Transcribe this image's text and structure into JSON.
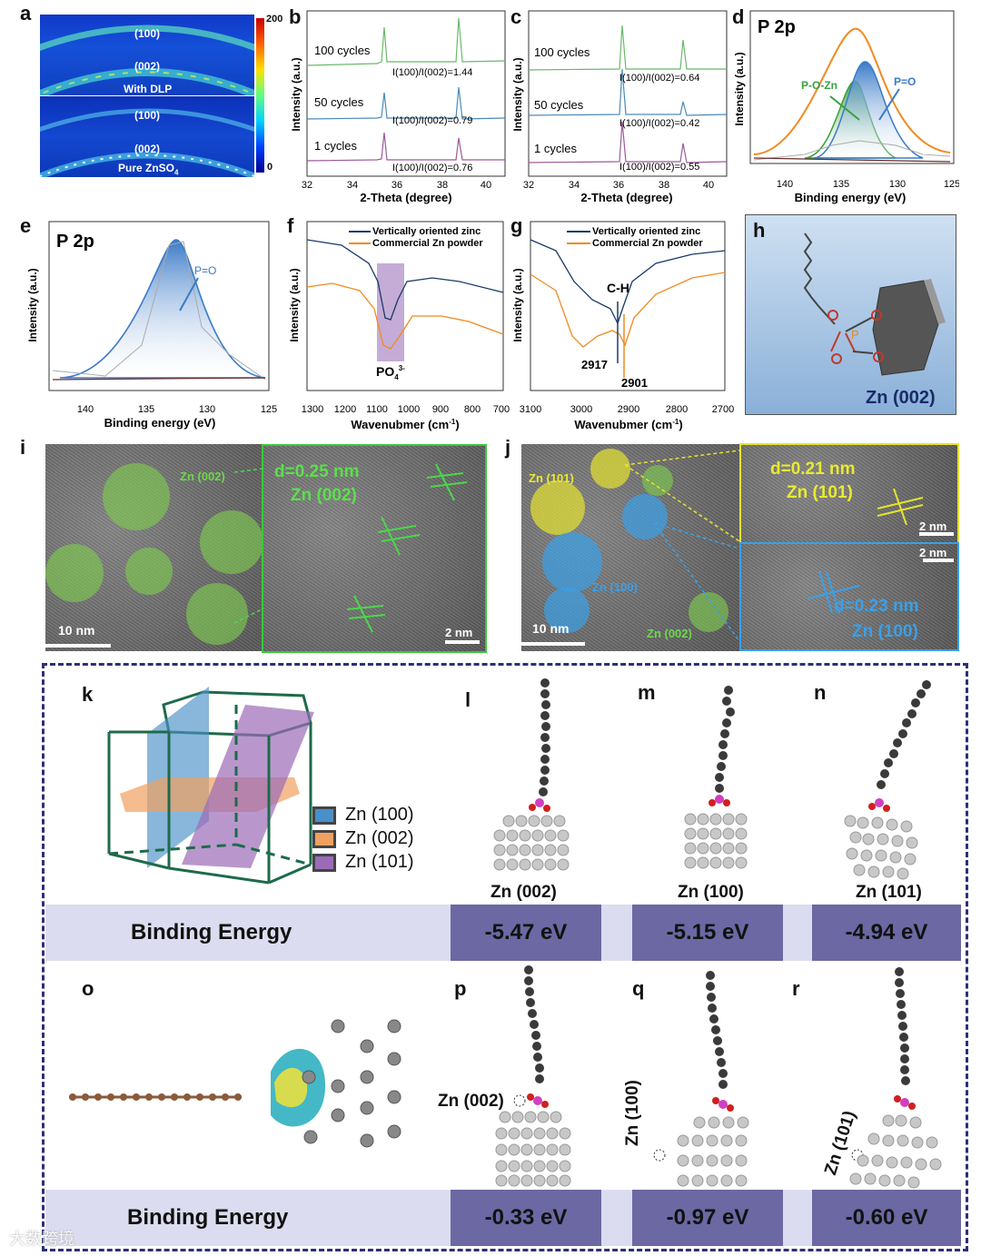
{
  "panels": {
    "a": {
      "label": "a",
      "top_text_1": "(100)",
      "top_text_2": "(002)",
      "top_caption": "With DLP",
      "bot_text_1": "(100)",
      "bot_text_2": "(002)",
      "bot_caption": "Pure ZnSO",
      "bot_caption_sub": "4",
      "colorbar_max": "200",
      "colorbar_min": "0"
    },
    "b": {
      "label": "b",
      "rows": [
        {
          "name": "100 cycles",
          "ratio": "I(100)/I(002)=1.44"
        },
        {
          "name": "50 cycles",
          "ratio": "I(100)/I(002)=0.79"
        },
        {
          "name": "1 cycles",
          "ratio": "I(100)/I(002)=0.76"
        }
      ],
      "xlabel": "2-Theta (degree)",
      "ylabel": "Intensity (a.u.)",
      "ticks": [
        "32",
        "34",
        "36",
        "38",
        "40"
      ]
    },
    "c": {
      "label": "c",
      "rows": [
        {
          "name": "100 cycles",
          "ratio": "I(100)/I(002)=0.64"
        },
        {
          "name": "50 cycles",
          "ratio": "I(100)/I(002)=0.42"
        },
        {
          "name": "1 cycles",
          "ratio": "I(100)/I(002)=0.55"
        }
      ],
      "xlabel": "2-Theta (degree)",
      "ylabel": "Intensity (a.u.)",
      "ticks": [
        "32",
        "34",
        "36",
        "38",
        "40"
      ]
    },
    "d": {
      "label": "d",
      "title": "P 2p",
      "peak1": "P-O-Zn",
      "peak2": "P=O",
      "xlabel": "Binding energy (eV)",
      "ylabel": "Intensity (a.u.)",
      "ticks": [
        "140",
        "135",
        "130",
        "125"
      ]
    },
    "e": {
      "label": "e",
      "title": "P 2p",
      "peak1": "P=O",
      "xlabel": "Binding energy (eV)",
      "ylabel": "Intensity (a.u.)",
      "ticks": [
        "140",
        "135",
        "130",
        "125"
      ]
    },
    "f": {
      "label": "f",
      "legend1": "Vertically oriented zinc",
      "legend2": "Commercial Zn powder",
      "band_label": "PO",
      "band_sup": "3-",
      "band_sub": "4",
      "xlabel": "Wavenubmer (cm",
      "xlabel_sup": "-1",
      "xlabel_end": ")",
      "ylabel": "Intensity (a.u.)",
      "ticks": [
        "1300",
        "1200",
        "1100",
        "1000",
        "900",
        "800",
        "700"
      ]
    },
    "g": {
      "label": "g",
      "legend1": "Vertically oriented zinc",
      "legend2": "Commercial Zn powder",
      "ch_label": "C-H",
      "peak1": "2917",
      "peak2": "2901",
      "xlabel": "Wavenubmer (cm",
      "xlabel_sup": "-1",
      "xlabel_end": ")",
      "ylabel": "Intensity (a.u.)",
      "ticks": [
        "3100",
        "3000",
        "2900",
        "2800",
        "2700"
      ]
    },
    "h": {
      "label": "h",
      "atom_p": "P",
      "atom_o": "O",
      "caption": "Zn (002)"
    },
    "i": {
      "label": "i",
      "circle_label": "Zn (002)",
      "d_text": "d=0.25 nm",
      "zn_text": "Zn (002)",
      "scale_left": "10 nm",
      "scale_right": "2 nm"
    },
    "j": {
      "label": "j",
      "zn101": "Zn (101)",
      "zn100": "Zn (100)",
      "zn002": "Zn (002)",
      "scale_left": "10 nm",
      "top_d": "d=0.21 nm",
      "top_zn": "Zn (101)",
      "top_scale": "2 nm",
      "bot_scale": "2 nm",
      "bot_d": "d=0.23 nm",
      "bot_zn": "Zn (100)"
    },
    "k": {
      "label": "k",
      "legend": [
        {
          "text": "Zn (100)",
          "color": "#4a90c8"
        },
        {
          "text": "Zn (002)",
          "color": "#f0a060"
        },
        {
          "text": "Zn (101)",
          "color": "#9b6bb8"
        }
      ]
    },
    "l": {
      "label": "l",
      "caption": "Zn (002)",
      "energy": "-5.47 eV"
    },
    "m": {
      "label": "m",
      "caption": "Zn (100)",
      "energy": "-5.15 eV"
    },
    "n": {
      "label": "n",
      "caption": "Zn (101)",
      "energy": "-4.94 eV"
    },
    "o": {
      "label": "o"
    },
    "p": {
      "label": "p",
      "caption": "Zn (002)",
      "energy": "-0.33 eV"
    },
    "q": {
      "label": "q",
      "caption": "Zn (100)",
      "energy": "-0.97 eV"
    },
    "r": {
      "label": "r",
      "caption": "Zn (101)",
      "energy": "-0.60 eV"
    }
  },
  "binding_energy_row1": "Binding Energy",
  "binding_energy_row2": "Binding Energy",
  "watermark": "大数跨境"
}
